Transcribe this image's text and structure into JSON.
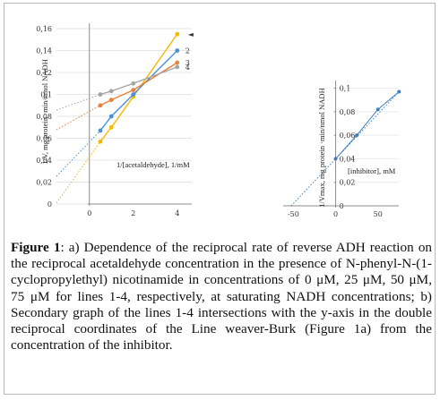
{
  "caption": {
    "label": "Figure 1",
    "text": ": a) Dependence of the reciprocal rate of reverse ADH reaction on the reciprocal acetaldehyde concentration in the presence of N-phenyl-N-(1-cyclopropylethyl) nicotinamide in concentrations of 0 μM, 25 μM, 50 μM, 75 μM for lines 1-4, respectively, at saturating NADH concentrations; b) Secondary graph of the lines 1-4 intersections with the y-axis in the double reciprocal coordinates of the Line weaver-Burk (Figure 1a) from the concentration of the inhibitor."
  },
  "chart_data": [
    {
      "type": "line",
      "panel": "a",
      "xlabel": "1/[acetaldehyde], 1/mM",
      "ylabel": "1/V, mg protein ·min/nmol NADH",
      "x_ticks": [
        "0",
        "2",
        "4"
      ],
      "y_ticks": [
        "0",
        "0,02",
        "0,04",
        "0,06",
        "0,08",
        "0,1",
        "0,12",
        "0,14",
        "0,16"
      ],
      "xlim": [
        -1.5,
        4.5
      ],
      "ylim": [
        0,
        0.16
      ],
      "x": [
        0.5,
        1,
        2,
        4
      ],
      "series": [
        {
          "name": "1",
          "color": "#f5b800",
          "values": [
            0.057,
            0.07,
            0.098,
            0.155
          ]
        },
        {
          "name": "2",
          "color": "#4a90d9",
          "values": [
            0.067,
            0.08,
            0.1,
            0.14
          ]
        },
        {
          "name": "3",
          "color": "#e8803a",
          "values": [
            0.09,
            0.095,
            0.104,
            0.129
          ]
        },
        {
          "name": "4",
          "color": "#a5a5a5",
          "values": [
            0.1,
            0.103,
            0.11,
            0.125
          ]
        }
      ],
      "label_marker": "◄"
    },
    {
      "type": "line",
      "panel": "b",
      "xlabel": "[inhibitor], mM",
      "ylabel": "1/Vmax, mg protein ·min/nmol NADH",
      "x_ticks": [
        "-50",
        "0",
        "50"
      ],
      "y_ticks": [
        "0",
        "0,02",
        "0,04",
        "0,06",
        "0,08",
        "0,1"
      ],
      "xlim": [
        -60,
        80
      ],
      "ylim": [
        0,
        0.105
      ],
      "series": [
        {
          "name": "",
          "color": "#3e7fc2",
          "x": [
            0,
            25,
            50,
            75
          ],
          "values": [
            0.04,
            0.06,
            0.082,
            0.097
          ]
        }
      ]
    }
  ]
}
